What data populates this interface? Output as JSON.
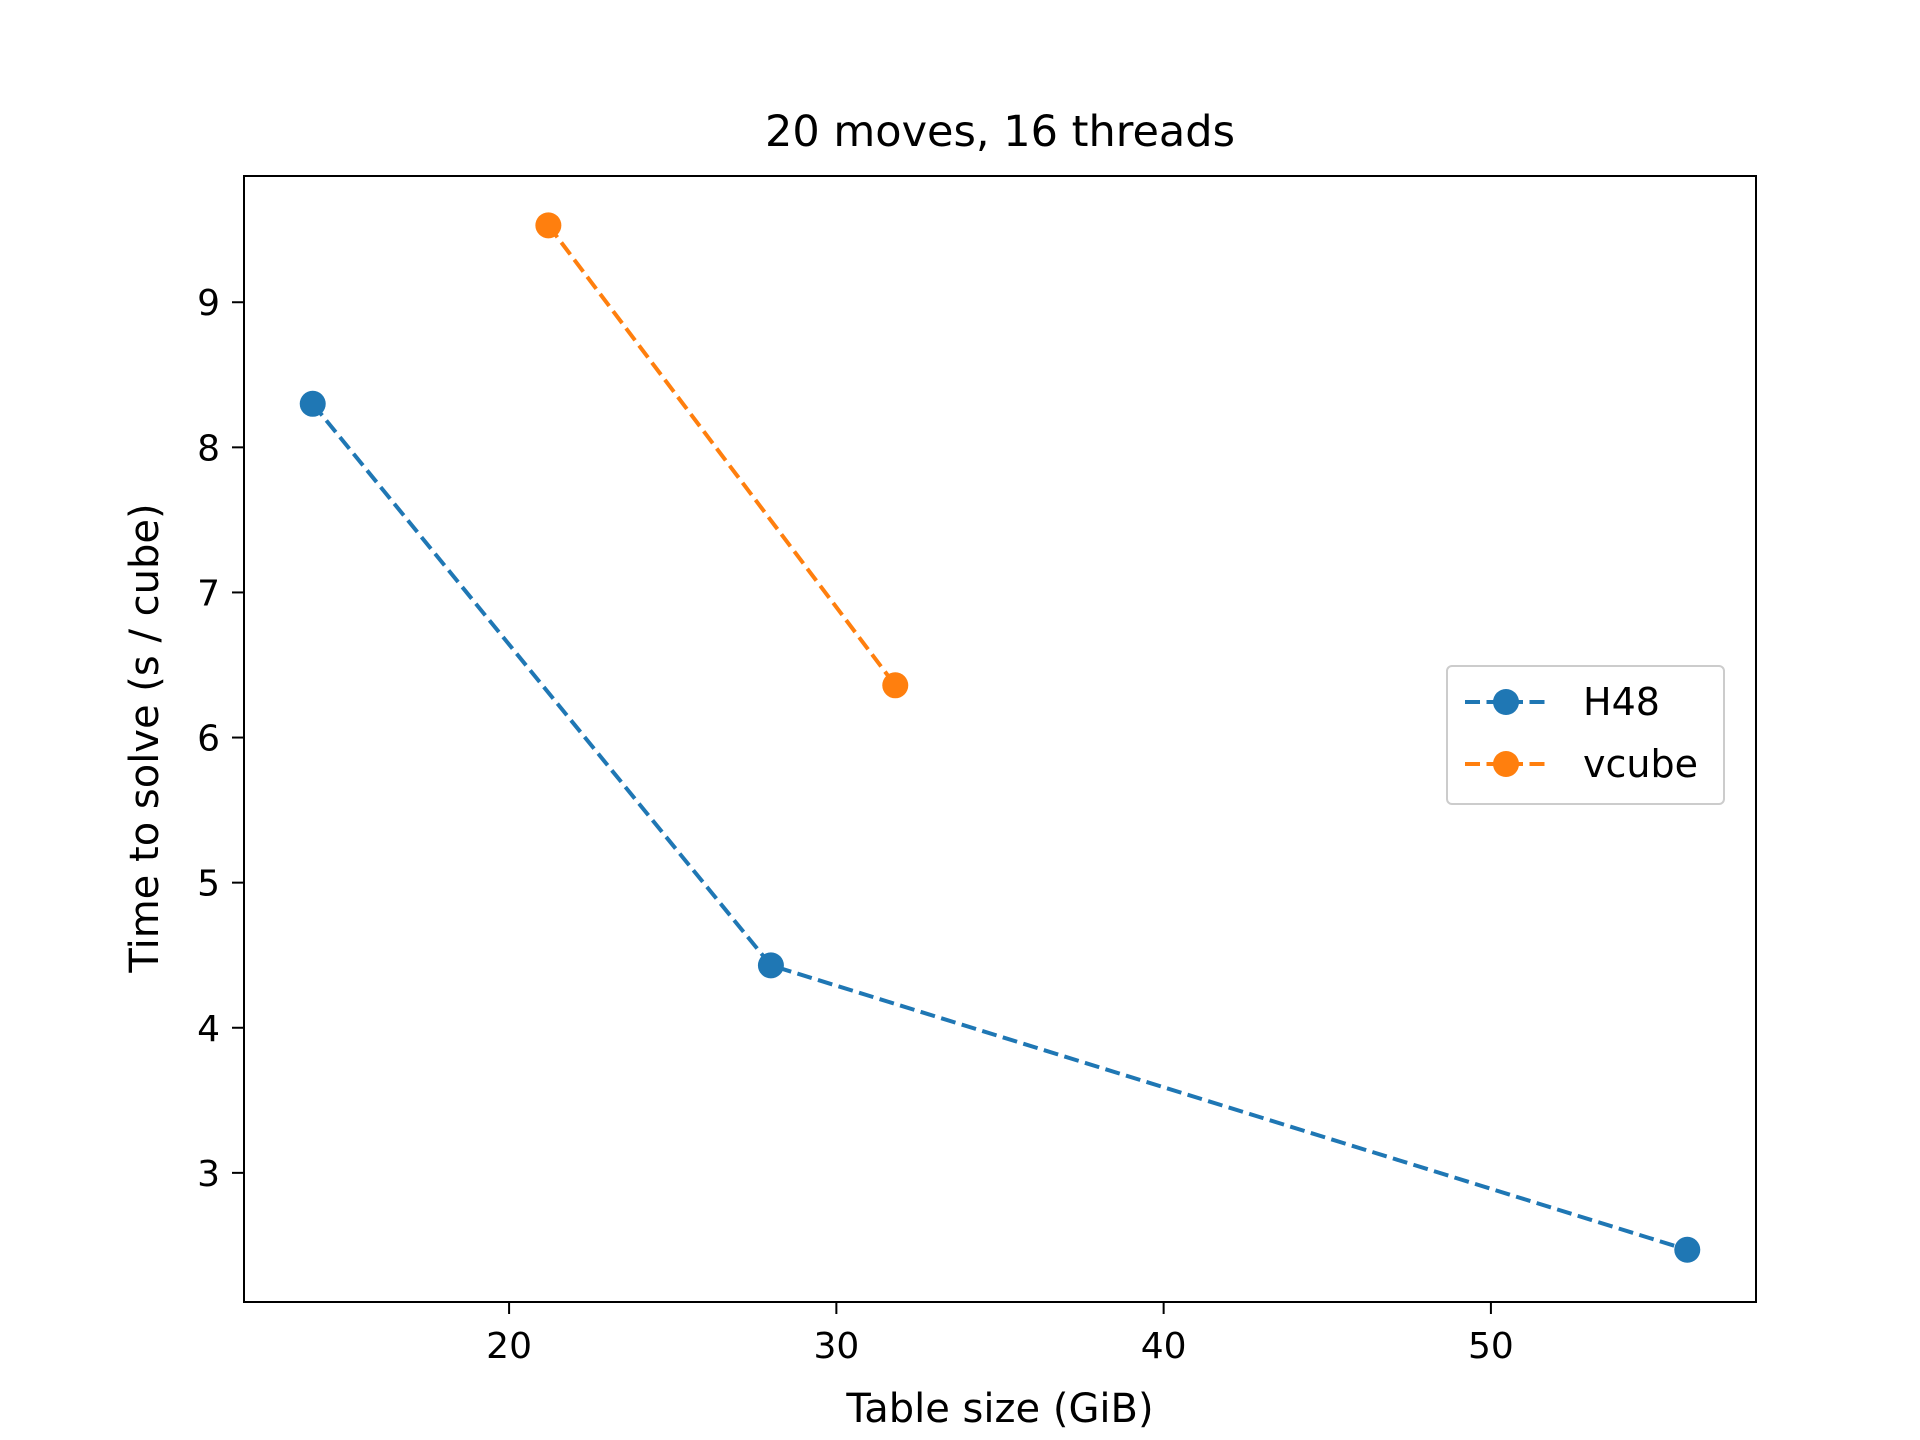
{
  "chart_data": {
    "type": "line",
    "title": "20 moves, 16 threads",
    "xlabel": "Table size (GiB)",
    "ylabel": "Time to solve (s / cube)",
    "xlim": [
      11.9,
      58.1
    ],
    "ylim": [
      2.11,
      9.87
    ],
    "xticks": [
      20,
      30,
      40,
      50
    ],
    "yticks": [
      3,
      4,
      5,
      6,
      7,
      8,
      9
    ],
    "grid": false,
    "legend_position": "center-right",
    "series": [
      {
        "name": "H48",
        "color": "#1f77b4",
        "line_style": "dashed",
        "marker": "circle",
        "x": [
          14.0,
          28.0,
          56.0
        ],
        "y": [
          8.3,
          4.43,
          2.47
        ]
      },
      {
        "name": "vcube",
        "color": "#ff7f0e",
        "line_style": "dashed",
        "marker": "circle",
        "x": [
          21.2,
          31.8
        ],
        "y": [
          9.53,
          6.36
        ]
      }
    ]
  }
}
